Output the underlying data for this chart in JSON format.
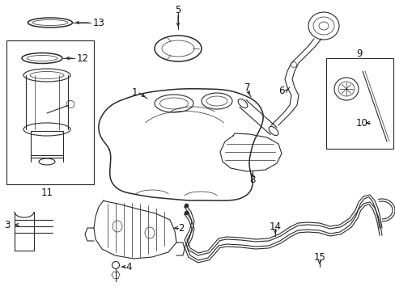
{
  "bg_color": "#ffffff",
  "line_color": "#2a2a2a",
  "lw": 0.8,
  "lw_thin": 0.5,
  "lw_thick": 1.1,
  "fs": 8.5
}
